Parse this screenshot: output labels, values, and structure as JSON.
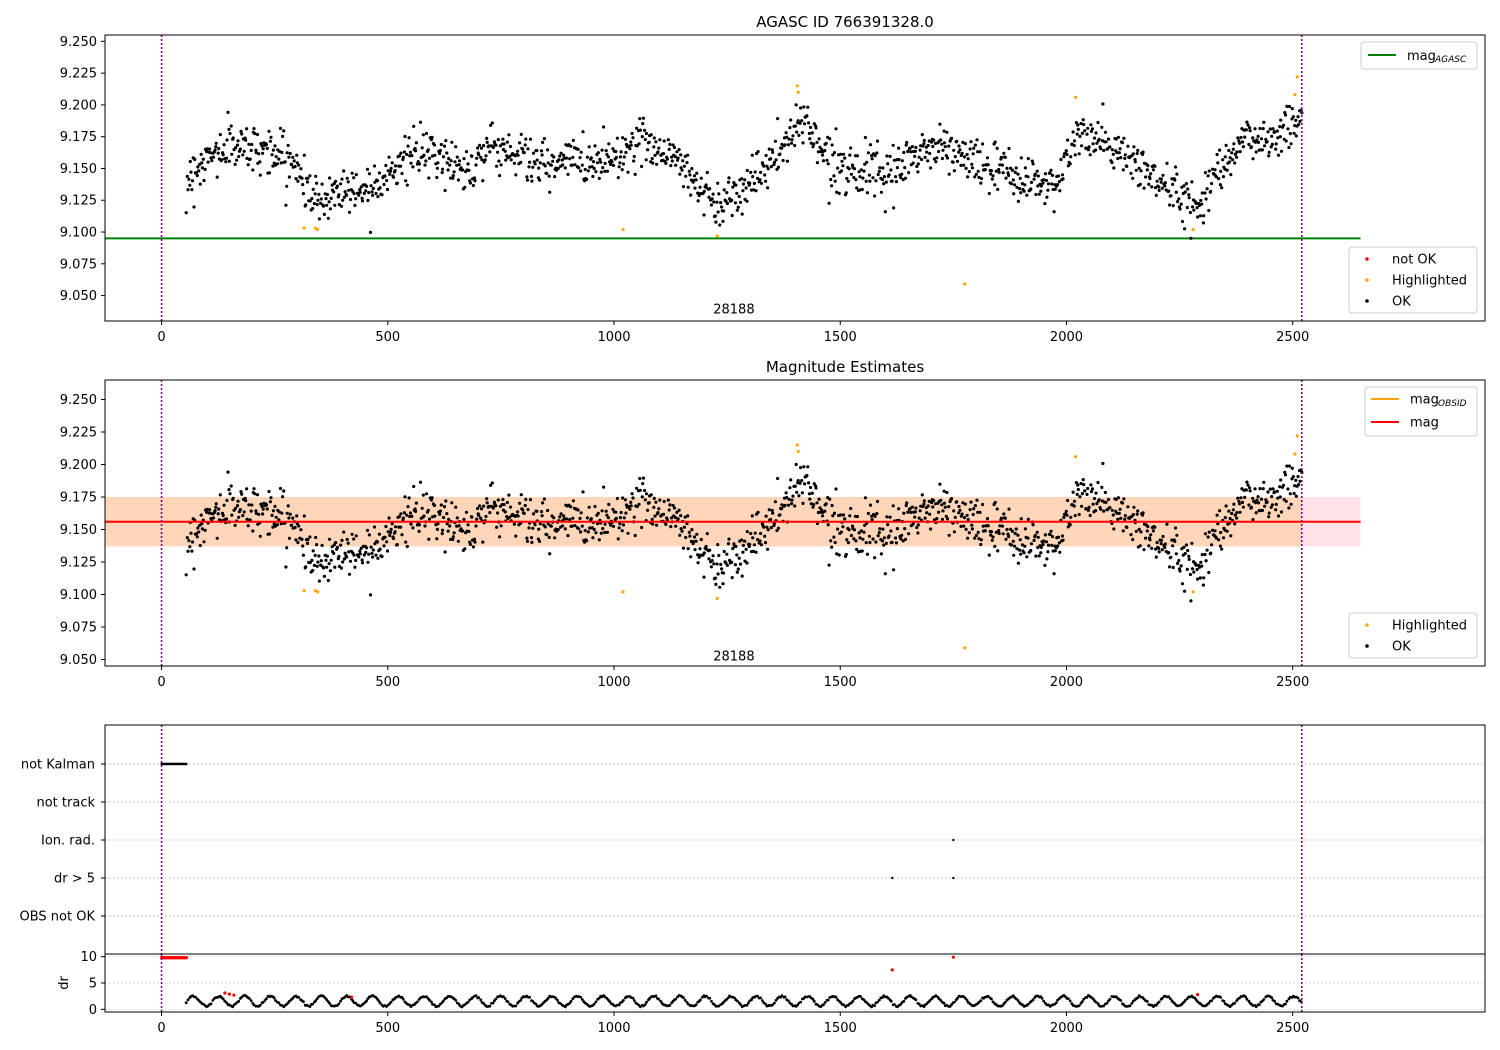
{
  "chart_data": [
    {
      "type": "scatter",
      "title": "AGASC ID 766391328.0",
      "xlim": [
        -125,
        2925
      ],
      "ylim": [
        9.03,
        9.255
      ],
      "xticks": [
        0,
        500,
        1000,
        1500,
        2000,
        2500
      ],
      "yticks": [
        "9.050",
        "9.075",
        "9.100",
        "9.125",
        "9.150",
        "9.175",
        "9.200",
        "9.225",
        "9.250"
      ],
      "vlines": [
        0,
        2520
      ],
      "vline_color": "#800080",
      "mag_agasc": {
        "value": 9.095,
        "x_range": [
          -125,
          2650
        ],
        "color": "#008000"
      },
      "annotation": {
        "text": "28188",
        "x": 1265,
        "y": 9.04
      },
      "legend_lines": [
        {
          "label": "mag",
          "sub": "AGASC",
          "color": "#008000"
        }
      ],
      "legend_points": [
        {
          "label": "not OK",
          "color": "#ff0000"
        },
        {
          "label": "Highlighted",
          "color": "#ffa500"
        },
        {
          "label": "OK",
          "color": "#000000"
        }
      ],
      "highlighted": [
        [
          315,
          9.103
        ],
        [
          340,
          9.103
        ],
        [
          345,
          9.102
        ],
        [
          1020,
          9.102
        ],
        [
          1228,
          9.097
        ],
        [
          1405,
          9.215
        ],
        [
          1407,
          9.21
        ],
        [
          1775,
          9.059
        ],
        [
          2020,
          9.206
        ],
        [
          2280,
          9.102
        ],
        [
          2505,
          9.208
        ],
        [
          2510,
          9.222
        ]
      ],
      "series_ok": {
        "name": "OK",
        "color": "#000000",
        "x_start": 55,
        "x_end": 2520,
        "n": 1450,
        "noise": 0.009,
        "trend": [
          [
            55,
            9.14
          ],
          [
            90,
            9.155
          ],
          [
            150,
            9.168
          ],
          [
            240,
            9.165
          ],
          [
            300,
            9.152
          ],
          [
            330,
            9.128
          ],
          [
            350,
            9.124
          ],
          [
            400,
            9.135
          ],
          [
            440,
            9.132
          ],
          [
            480,
            9.142
          ],
          [
            560,
            9.162
          ],
          [
            620,
            9.158
          ],
          [
            680,
            9.148
          ],
          [
            720,
            9.168
          ],
          [
            800,
            9.16
          ],
          [
            860,
            9.15
          ],
          [
            900,
            9.158
          ],
          [
            950,
            9.155
          ],
          [
            1000,
            9.16
          ],
          [
            1070,
            9.172
          ],
          [
            1130,
            9.16
          ],
          [
            1180,
            9.14
          ],
          [
            1230,
            9.12
          ],
          [
            1280,
            9.135
          ],
          [
            1330,
            9.148
          ],
          [
            1380,
            9.168
          ],
          [
            1420,
            9.192
          ],
          [
            1450,
            9.17
          ],
          [
            1480,
            9.155
          ],
          [
            1560,
            9.148
          ],
          [
            1600,
            9.14
          ],
          [
            1660,
            9.16
          ],
          [
            1720,
            9.168
          ],
          [
            1780,
            9.158
          ],
          [
            1830,
            9.15
          ],
          [
            1880,
            9.145
          ],
          [
            1940,
            9.138
          ],
          [
            1980,
            9.14
          ],
          [
            2030,
            9.178
          ],
          [
            2080,
            9.17
          ],
          [
            2150,
            9.155
          ],
          [
            2220,
            9.135
          ],
          [
            2290,
            9.12
          ],
          [
            2350,
            9.16
          ],
          [
            2400,
            9.172
          ],
          [
            2470,
            9.175
          ],
          [
            2520,
            9.195
          ]
        ]
      }
    },
    {
      "type": "scatter",
      "title": "Magnitude Estimates",
      "xlim": [
        -125,
        2925
      ],
      "ylim": [
        9.045,
        9.265
      ],
      "xticks": [
        0,
        500,
        1000,
        1500,
        2000,
        2500
      ],
      "yticks": [
        "9.050",
        "9.075",
        "9.100",
        "9.125",
        "9.150",
        "9.175",
        "9.200",
        "9.225",
        "9.250"
      ],
      "vlines": [
        0,
        2520
      ],
      "mag": {
        "value": 9.156,
        "x_range": [
          -125,
          2650
        ],
        "color": "#ff0000"
      },
      "mag_band": {
        "low": 9.137,
        "high": 9.175,
        "color": "#ffc0cb"
      },
      "obsid_band": {
        "low": 9.137,
        "high": 9.175,
        "x_range": [
          -125,
          2520
        ],
        "color": "#ffa500"
      },
      "annotation": {
        "text": "28188",
        "x": 1265,
        "y": 9.053
      },
      "legend_lines": [
        {
          "label": "mag",
          "sub": "OBSID",
          "color": "#ffa500"
        },
        {
          "label": "mag",
          "sub": "",
          "color": "#ff0000"
        }
      ],
      "legend_points": [
        {
          "label": "Highlighted",
          "color": "#ffa500"
        },
        {
          "label": "OK",
          "color": "#000000"
        }
      ]
    },
    {
      "type": "scatter",
      "xlim": [
        -125,
        2925
      ],
      "xticks": [
        0,
        500,
        1000,
        1500,
        2000,
        2500
      ],
      "vlines": [
        0,
        2520
      ],
      "flag_labels": [
        "not Kalman",
        "not track",
        "Ion. rad.",
        "dr > 5",
        "OBS not OK"
      ],
      "flags": {
        "not Kalman": {
          "x_range": [
            0,
            55
          ],
          "n": 40
        },
        "not track": {
          "x_range": null,
          "n": 0
        },
        "Ion. rad.": {
          "points": [
            1750
          ]
        },
        "dr > 5": {
          "points": [
            1615,
            1750
          ]
        },
        "OBS not OK": {
          "x_range": null,
          "n": 0
        }
      },
      "dr": {
        "ylabel": "dr",
        "ylim": [
          -0.5,
          10.5
        ],
        "yticks": [
          0,
          5,
          10
        ],
        "high_red_x_range": [
          0,
          55
        ],
        "red_points": [
          [
            140,
            3.1
          ],
          [
            150,
            2.9
          ],
          [
            160,
            2.7
          ],
          [
            420,
            2.3
          ],
          [
            1615,
            7.5
          ],
          [
            1750,
            9.9
          ],
          [
            2290,
            2.8
          ]
        ],
        "ok_range": [
          0.5,
          2.6
        ]
      }
    }
  ]
}
